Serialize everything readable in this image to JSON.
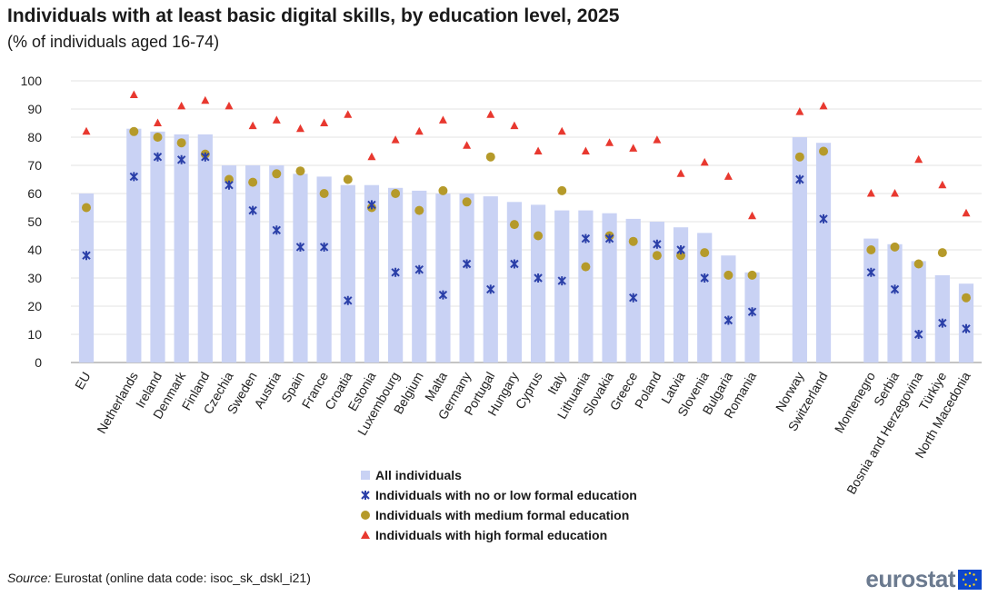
{
  "title": "Individuals with at least basic digital skills, by education level, 2025",
  "subtitle": "(% of individuals aged 16-74)",
  "source_label": "Source:",
  "source_text": " Eurostat (online data code: isoc_sk_dskl_i21)",
  "logo_text": "eurostat",
  "colors": {
    "bar": "#c9d2f4",
    "low": "#2a3fa8",
    "medium": "#b59a2a",
    "high": "#e8382f"
  },
  "chart_data": {
    "type": "bar",
    "title": "Individuals with at least basic digital skills, by education level, 2025",
    "ylim": [
      0,
      100
    ],
    "yticks": [
      0,
      10,
      20,
      30,
      40,
      50,
      60,
      70,
      80,
      90,
      100
    ],
    "grid": true,
    "legend_position": "bottom-center",
    "categories": [
      "EU",
      "Netherlands",
      "Ireland",
      "Denmark",
      "Finland",
      "Czechia",
      "Sweden",
      "Austria",
      "Spain",
      "France",
      "Croatia",
      "Estonia",
      "Luxembourg",
      "Belgium",
      "Malta",
      "Germany",
      "Portugal",
      "Hungary",
      "Cyprus",
      "Italy",
      "Lithuania",
      "Slovakia",
      "Greece",
      "Poland",
      "Latvia",
      "Slovenia",
      "Bulgaria",
      "Romania",
      "Norway",
      "Switzerland",
      "Montenegro",
      "Serbia",
      "Bosnia and Herzegovina",
      "Türkiye",
      "North Macedonia"
    ],
    "groups": [
      1,
      27,
      2,
      5
    ],
    "series": [
      {
        "name": "All individuals",
        "type": "bar",
        "values": [
          60,
          83,
          82,
          81,
          81,
          70,
          70,
          70,
          67,
          66,
          63,
          63,
          62,
          61,
          60,
          60,
          59,
          57,
          56,
          54,
          54,
          53,
          51,
          50,
          48,
          46,
          38,
          32,
          80,
          78,
          44,
          42,
          36,
          31,
          28
        ]
      },
      {
        "name": "Individuals with no or low formal education",
        "type": "scatter",
        "marker": "x",
        "values": [
          38,
          66,
          73,
          72,
          73,
          63,
          54,
          47,
          41,
          41,
          22,
          56,
          32,
          33,
          24,
          35,
          26,
          35,
          30,
          29,
          44,
          44,
          23,
          42,
          40,
          30,
          15,
          18,
          65,
          51,
          32,
          26,
          10,
          14,
          12
        ]
      },
      {
        "name": "Individuals with medium formal education",
        "type": "scatter",
        "marker": "circle",
        "values": [
          55,
          82,
          80,
          78,
          74,
          65,
          64,
          67,
          68,
          60,
          65,
          55,
          60,
          54,
          61,
          57,
          73,
          49,
          45,
          61,
          34,
          45,
          43,
          38,
          38,
          39,
          31,
          31,
          73,
          75,
          40,
          41,
          35,
          39,
          23
        ]
      },
      {
        "name": "Individuals with high formal education",
        "type": "scatter",
        "marker": "triangle",
        "values": [
          82,
          95,
          85,
          91,
          93,
          91,
          84,
          86,
          83,
          85,
          88,
          73,
          79,
          82,
          86,
          77,
          88,
          84,
          75,
          82,
          75,
          78,
          76,
          79,
          67,
          71,
          66,
          52,
          89,
          91,
          60,
          60,
          72,
          63,
          53
        ]
      }
    ]
  }
}
